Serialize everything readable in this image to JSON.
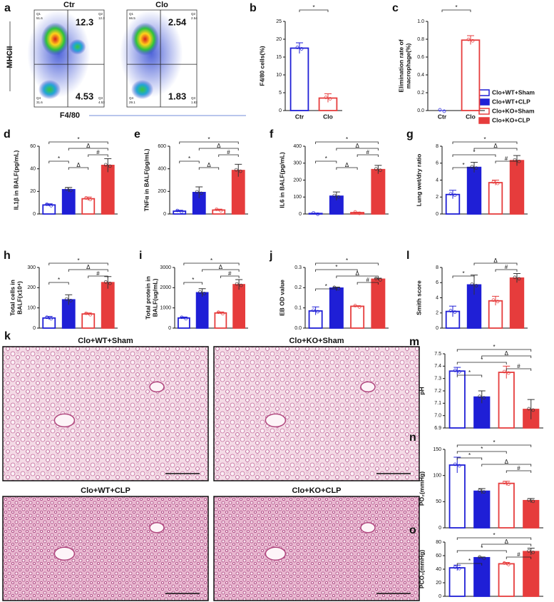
{
  "flow": {
    "panel": "a",
    "ylabel": "MHCII",
    "xlabel": "F4/80",
    "plots": [
      {
        "title": "Ctr",
        "q2": "12.3",
        "q3": "4.53",
        "quadrants": [
          {
            "name": "Q1",
            "value": "51.6"
          },
          {
            "name": "Q2",
            "value": "12.3"
          },
          {
            "name": "Q4",
            "value": "31.6"
          },
          {
            "name": "Q3",
            "value": "4.53"
          }
        ]
      },
      {
        "title": "Clo",
        "q2": "2.54",
        "q3": "1.83",
        "quadrants": [
          {
            "name": "Q1",
            "value": "66.5"
          },
          {
            "name": "Q2",
            "value": "2.54"
          },
          {
            "name": "Q4",
            "value": "29.1"
          },
          {
            "name": "Q3",
            "value": "1.83"
          }
        ]
      }
    ]
  },
  "histology": {
    "panel": "k",
    "images": [
      {
        "title": "Clo+WT+Sham"
      },
      {
        "title": "Clo+KO+Sham"
      },
      {
        "title": "Clo+WT+CLP"
      },
      {
        "title": "Clo+KO+CLP"
      }
    ]
  },
  "legend": {
    "entries": [
      {
        "name": "Clo+WT+Sham",
        "color": "#1f1fd6",
        "filled": false
      },
      {
        "name": "Clo+WT+CLP",
        "color": "#1f1fd6",
        "filled": true
      },
      {
        "name": "Clo+KO+Sham",
        "color": "#e63c3c",
        "filled": false
      },
      {
        "name": "Clo+KO+CLP",
        "color": "#e63c3c",
        "filled": true
      }
    ]
  },
  "chart_data": [
    {
      "type": "bar",
      "panel": "b",
      "ylabel": [
        "F4/80 cells(%)"
      ],
      "categories": [
        "Ctr",
        "Clo"
      ],
      "colors": [
        "#1f1fd6",
        "#e63c3c"
      ],
      "values": [
        17.5,
        3.5
      ],
      "errors": [
        1.5,
        1.2
      ],
      "ylim": [
        0,
        25
      ],
      "yticks": [
        0,
        5,
        10,
        15,
        20,
        25
      ],
      "annotations": [
        {
          "label": "*",
          "pair": [
            0,
            1
          ]
        }
      ]
    },
    {
      "type": "bar",
      "panel": "c",
      "ylabel": [
        "Elimination rate of",
        "macrophage(%)"
      ],
      "categories": [
        "Ctr",
        "Clo"
      ],
      "colors": [
        "#1f1fd6",
        "#e63c3c"
      ],
      "values": [
        0,
        0.79
      ],
      "errors": [
        0,
        0.05
      ],
      "ylim": [
        0,
        1
      ],
      "yticks": [
        {
          "value": 0,
          "label": "0.0"
        },
        0.2,
        0.4,
        0.6,
        0.8,
        {
          "value": 1,
          "label": "1.0"
        }
      ],
      "annotations": [
        {
          "label": "*",
          "pair": [
            0,
            1
          ]
        }
      ]
    },
    {
      "type": "bar",
      "panel": "d",
      "ylabel": [
        "IL1β in BALF(pg/mL)"
      ],
      "values": [
        8,
        21.5,
        13.5,
        43
      ],
      "errors": [
        1,
        2,
        1.5,
        6
      ],
      "ylim": [
        0,
        60
      ],
      "yticks": [
        0,
        20,
        40,
        60
      ],
      "annotations": [
        {
          "label": "*",
          "pair": [
            0,
            3
          ]
        },
        {
          "label": "Δ",
          "pair": [
            1,
            3
          ]
        },
        {
          "label": "#",
          "pair": [
            2,
            3
          ]
        },
        {
          "label": "*",
          "pair": [
            0,
            1
          ]
        },
        {
          "label": "Δ",
          "pair": [
            1,
            2
          ]
        }
      ]
    },
    {
      "type": "bar",
      "panel": "e",
      "ylabel": [
        "TNFα in BALF(pg/mL)"
      ],
      "values": [
        25,
        190,
        35,
        385
      ],
      "errors": [
        8,
        50,
        8,
        55
      ],
      "ylim": [
        0,
        600
      ],
      "yticks": [
        0,
        200,
        400,
        600
      ],
      "annotations": [
        {
          "label": "*",
          "pair": [
            0,
            3
          ]
        },
        {
          "label": "Δ",
          "pair": [
            1,
            3
          ]
        },
        {
          "label": "#",
          "pair": [
            2,
            3
          ]
        },
        {
          "label": "*",
          "pair": [
            0,
            1
          ]
        },
        {
          "label": "Δ",
          "pair": [
            1,
            2
          ]
        }
      ]
    },
    {
      "type": "bar",
      "panel": "f",
      "ylabel": [
        "IL6 in BALF(pg/mL)"
      ],
      "values": [
        3,
        105,
        8,
        262
      ],
      "errors": [
        2,
        25,
        3,
        25
      ],
      "ylim": [
        0,
        400
      ],
      "yticks": [
        0,
        100,
        200,
        300,
        400
      ],
      "annotations": [
        {
          "label": "*",
          "pair": [
            0,
            3
          ]
        },
        {
          "label": "Δ",
          "pair": [
            1,
            3
          ]
        },
        {
          "label": "#",
          "pair": [
            2,
            3
          ]
        },
        {
          "label": "*",
          "pair": [
            0,
            1
          ]
        },
        {
          "label": "Δ",
          "pair": [
            1,
            2
          ]
        }
      ]
    },
    {
      "type": "bar",
      "panel": "g",
      "ylabel": [
        "Lung wet/dry ratio"
      ],
      "values": [
        2.3,
        5.5,
        3.7,
        6.3
      ],
      "errors": [
        0.5,
        0.6,
        0.3,
        0.6
      ],
      "ylim": [
        0,
        8
      ],
      "yticks": [
        0,
        2,
        4,
        6,
        8
      ],
      "annotations": [
        {
          "label": "*",
          "pair": [
            0,
            3
          ]
        },
        {
          "label": "Δ",
          "pair": [
            1,
            3
          ]
        },
        {
          "label": "*",
          "pair": [
            0,
            2
          ]
        },
        {
          "label": "#",
          "pair": [
            2,
            3
          ]
        },
        {
          "label": "*",
          "pair": [
            0,
            1
          ]
        }
      ]
    },
    {
      "type": "bar",
      "panel": "h",
      "ylabel": [
        "Total cells in",
        "BALF(x10⁴)"
      ],
      "values": [
        50,
        140,
        70,
        225
      ],
      "errors": [
        8,
        25,
        5,
        30
      ],
      "ylim": [
        0,
        300
      ],
      "yticks": [
        0,
        100,
        200,
        300
      ],
      "annotations": [
        {
          "label": "*",
          "pair": [
            0,
            3
          ]
        },
        {
          "label": "Δ",
          "pair": [
            1,
            3
          ]
        },
        {
          "label": "#",
          "pair": [
            2,
            3
          ]
        },
        {
          "label": "*",
          "pair": [
            0,
            1
          ]
        }
      ]
    },
    {
      "type": "bar",
      "panel": "i",
      "ylabel": [
        "Total protein in",
        "BALF(ug/mL)"
      ],
      "values": [
        500,
        1750,
        750,
        2150
      ],
      "errors": [
        50,
        200,
        50,
        250
      ],
      "ylim": [
        0,
        3000
      ],
      "yticks": [
        0,
        1000,
        2000,
        3000
      ],
      "annotations": [
        {
          "label": "*",
          "pair": [
            0,
            3
          ]
        },
        {
          "label": "Δ",
          "pair": [
            1,
            3
          ]
        },
        {
          "label": "#",
          "pair": [
            2,
            3
          ]
        },
        {
          "label": "*",
          "pair": [
            0,
            1
          ]
        }
      ]
    },
    {
      "type": "bar",
      "panel": "j",
      "ylabel": [
        "EB OD value"
      ],
      "values": [
        0.085,
        0.198,
        0.108,
        0.242
      ],
      "errors": [
        0.02,
        0.005,
        0.003,
        0.005
      ],
      "ylim": [
        0,
        0.3
      ],
      "yticks": [
        {
          "value": 0,
          "label": "0.0"
        },
        0.1,
        0.2,
        0.3
      ],
      "annotations": [
        {
          "label": "*",
          "pair": [
            0,
            3
          ]
        },
        {
          "label": "*",
          "pair": [
            0,
            2
          ]
        },
        {
          "label": "Δ",
          "pair": [
            1,
            3
          ]
        },
        {
          "label": "#",
          "pair": [
            2,
            3
          ]
        },
        {
          "label": "*",
          "pair": [
            0,
            1
          ]
        }
      ]
    },
    {
      "type": "bar",
      "panel": "l",
      "ylabel": [
        "Smith score"
      ],
      "values": [
        2.2,
        5.7,
        3.6,
        6.6
      ],
      "errors": [
        0.7,
        1.3,
        0.6,
        0.6
      ],
      "ylim": [
        0,
        8
      ],
      "yticks": [
        0,
        2,
        4,
        6,
        8
      ],
      "annotations": [
        {
          "label": "Δ",
          "pair": [
            1,
            3
          ]
        },
        {
          "label": "#",
          "pair": [
            2,
            3
          ]
        },
        {
          "label": "*",
          "pair": [
            0,
            1
          ]
        }
      ]
    },
    {
      "type": "bar",
      "panel": "m",
      "ylabel": [
        "pH"
      ],
      "values": [
        7.36,
        7.15,
        7.35,
        7.05
      ],
      "errors": [
        0.03,
        0.05,
        0.05,
        0.08
      ],
      "ylim": [
        6.9,
        7.5
      ],
      "yticks": [
        6.9,
        {
          "value": 7,
          "label": "7.0"
        },
        7.1,
        7.2,
        7.3,
        7.4,
        7.5
      ],
      "annotations": [
        {
          "label": "*",
          "pair": [
            0,
            3
          ]
        },
        {
          "label": "Δ",
          "pair": [
            1,
            3
          ]
        },
        {
          "label": "*",
          "pair": [
            0,
            2
          ]
        },
        {
          "label": "#",
          "pair": [
            2,
            3
          ]
        },
        {
          "label": "*",
          "pair": [
            0,
            1
          ]
        }
      ]
    },
    {
      "type": "bar",
      "panel": "n",
      "ylabel": [
        "PO₂(mmHg)"
      ],
      "values": [
        120,
        70,
        85,
        52
      ],
      "errors": [
        15,
        5,
        4,
        4
      ],
      "ylim": [
        0,
        150
      ],
      "yticks": [
        0,
        50,
        100,
        150
      ],
      "annotations": [
        {
          "label": "*",
          "pair": [
            0,
            3
          ]
        },
        {
          "label": "*",
          "pair": [
            0,
            2
          ]
        },
        {
          "label": "*",
          "pair": [
            0,
            1
          ]
        },
        {
          "label": "Δ",
          "pair": [
            1,
            3
          ]
        },
        {
          "label": "#",
          "pair": [
            2,
            3
          ]
        }
      ]
    },
    {
      "type": "bar",
      "panel": "o",
      "ylabel": [
        "PCO₂(mmHg)"
      ],
      "values": [
        42,
        57,
        48,
        66
      ],
      "errors": [
        4,
        1,
        2,
        5
      ],
      "ylim": [
        0,
        80
      ],
      "yticks": [
        0,
        20,
        40,
        60,
        80
      ],
      "annotations": [
        {
          "label": "*",
          "pair": [
            0,
            3
          ]
        },
        {
          "label": "Δ",
          "pair": [
            1,
            3
          ]
        },
        {
          "label": "*",
          "pair": [
            0,
            2
          ]
        },
        {
          "label": "#",
          "pair": [
            2,
            3
          ]
        },
        {
          "label": "*",
          "pair": [
            0,
            1
          ]
        }
      ]
    }
  ]
}
